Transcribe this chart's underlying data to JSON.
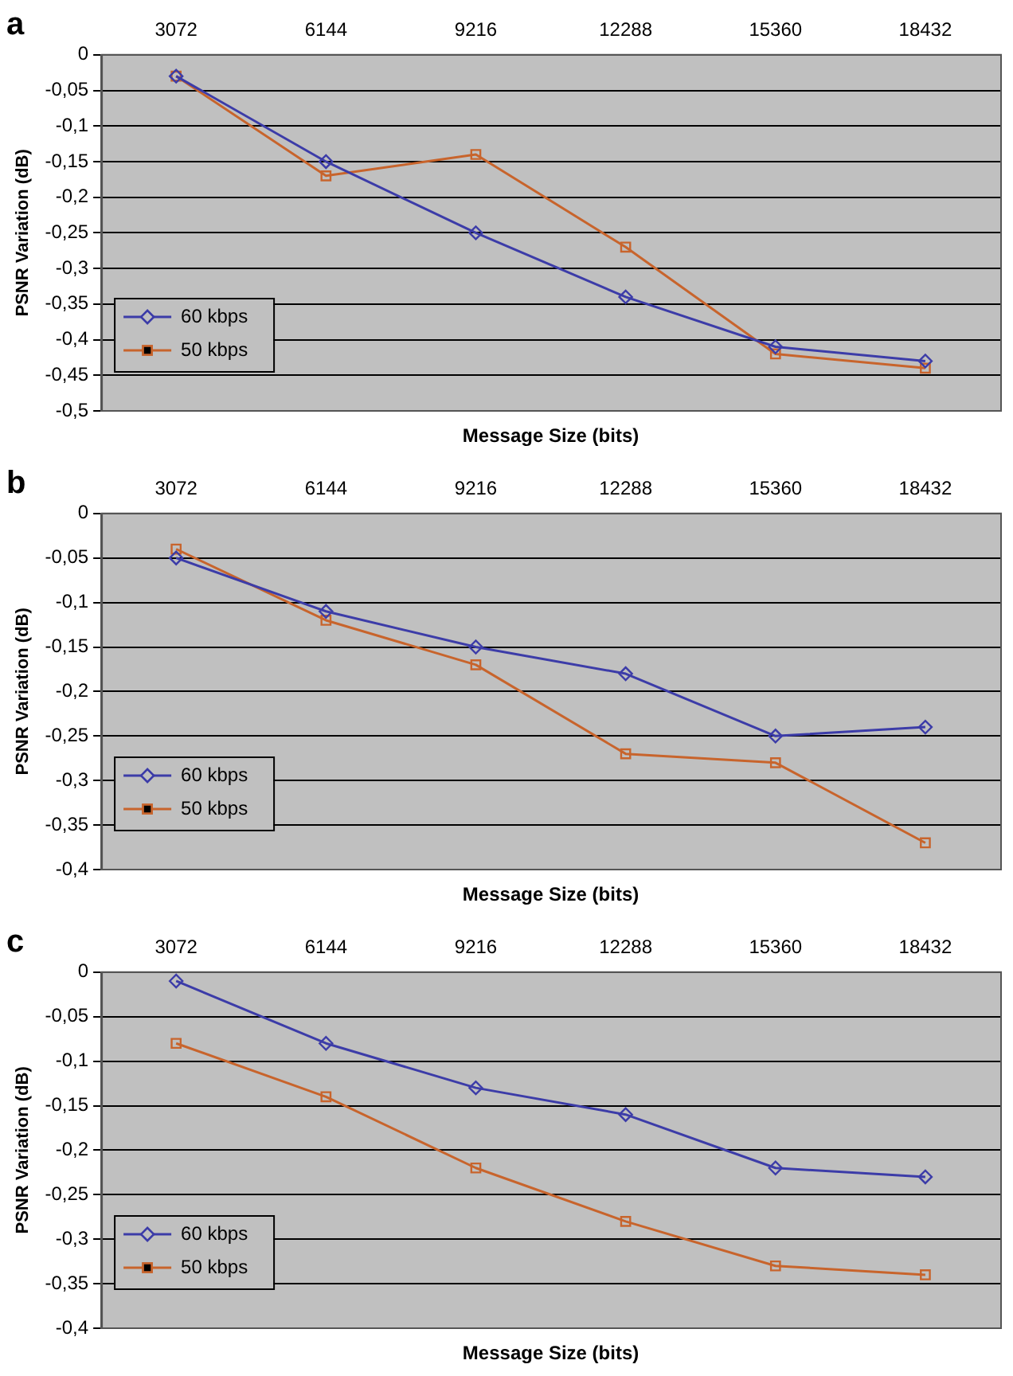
{
  "chart_data": [
    {
      "type": "line",
      "title": "a",
      "xlabel": "Message Size (bits)",
      "ylabel": "PSNR Variation (dB)",
      "categories": [
        "3072",
        "6144",
        "9216",
        "12288",
        "15360",
        "18432"
      ],
      "ylim": [
        -0.5,
        0
      ],
      "yticks": [
        {
          "value": -0.5,
          "label": "-0,5"
        },
        {
          "value": -0.45,
          "label": "-0,45"
        },
        {
          "value": -0.4,
          "label": "-0,4"
        },
        {
          "value": -0.35,
          "label": "-0,35"
        },
        {
          "value": -0.3,
          "label": "-0,3"
        },
        {
          "value": -0.25,
          "label": "-0,25"
        },
        {
          "value": -0.2,
          "label": "-0,2"
        },
        {
          "value": -0.15,
          "label": "-0,15"
        },
        {
          "value": -0.1,
          "label": "-0,1"
        },
        {
          "value": -0.05,
          "label": "-0,05"
        },
        {
          "value": 0,
          "label": "0"
        }
      ],
      "grid": "y",
      "legend": "bottom left",
      "line_style": "solid",
      "series": [
        {
          "name": "60 kbps",
          "color": "#3c3ca8",
          "marker": "diamond",
          "values": [
            -0.03,
            -0.15,
            -0.25,
            -0.34,
            -0.41,
            -0.43
          ]
        },
        {
          "name": "50 kbps",
          "color": "#c8642c",
          "marker": "square",
          "values": [
            -0.03,
            -0.17,
            -0.14,
            -0.27,
            -0.42,
            -0.44
          ]
        }
      ]
    },
    {
      "type": "line",
      "title": "b",
      "xlabel": "Message Size (bits)",
      "ylabel": "PSNR Variation (dB)",
      "categories": [
        "3072",
        "6144",
        "9216",
        "12288",
        "15360",
        "18432"
      ],
      "ylim": [
        -0.4,
        0
      ],
      "yticks": [
        {
          "value": -0.4,
          "label": "-0,4"
        },
        {
          "value": -0.35,
          "label": "-0,35"
        },
        {
          "value": -0.3,
          "label": "-0,3"
        },
        {
          "value": -0.25,
          "label": "-0,25"
        },
        {
          "value": -0.2,
          "label": "-0,2"
        },
        {
          "value": -0.15,
          "label": "-0,15"
        },
        {
          "value": -0.1,
          "label": "-0,1"
        },
        {
          "value": -0.05,
          "label": "-0,05"
        },
        {
          "value": 0,
          "label": "0"
        }
      ],
      "grid": "y",
      "legend": "bottom left",
      "line_style": "solid",
      "series": [
        {
          "name": "60 kbps",
          "color": "#3c3ca8",
          "marker": "diamond",
          "values": [
            -0.05,
            -0.11,
            -0.15,
            -0.18,
            -0.25,
            -0.24
          ]
        },
        {
          "name": "50 kbps",
          "color": "#c8642c",
          "marker": "square",
          "values": [
            -0.04,
            -0.12,
            -0.17,
            -0.27,
            -0.28,
            -0.37
          ]
        }
      ]
    },
    {
      "type": "line",
      "title": "c",
      "xlabel": "Message Size (bits)",
      "ylabel": "PSNR Variation (dB)",
      "categories": [
        "3072",
        "6144",
        "9216",
        "12288",
        "15360",
        "18432"
      ],
      "ylim": [
        -0.4,
        0
      ],
      "yticks": [
        {
          "value": -0.4,
          "label": "-0,4"
        },
        {
          "value": -0.35,
          "label": "-0,35"
        },
        {
          "value": -0.3,
          "label": "-0,3"
        },
        {
          "value": -0.25,
          "label": "-0,25"
        },
        {
          "value": -0.2,
          "label": "-0,2"
        },
        {
          "value": -0.15,
          "label": "-0,15"
        },
        {
          "value": -0.1,
          "label": "-0,1"
        },
        {
          "value": -0.05,
          "label": "-0,05"
        },
        {
          "value": 0,
          "label": "0"
        }
      ],
      "grid": "y",
      "legend": "bottom left",
      "line_style": "solid",
      "series": [
        {
          "name": "60 kbps",
          "color": "#3c3ca8",
          "marker": "diamond",
          "values": [
            -0.01,
            -0.08,
            -0.13,
            -0.16,
            -0.22,
            -0.23
          ]
        },
        {
          "name": "50 kbps",
          "color": "#c8642c",
          "marker": "square",
          "values": [
            -0.08,
            -0.14,
            -0.22,
            -0.28,
            -0.33,
            -0.34
          ]
        }
      ]
    }
  ]
}
